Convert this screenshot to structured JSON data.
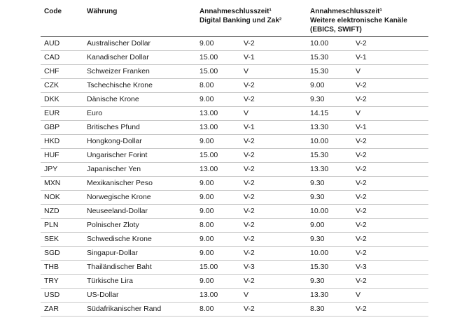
{
  "table": {
    "header": [
      [
        "Code"
      ],
      [
        "Währung"
      ],
      [
        "Annahmeschlusszeit¹",
        "Digital Banking und Zak²"
      ],
      [
        "Annahmeschlusszeit¹",
        "Weitere elektronische Kanäle",
        "(EBICS, SWIFT)"
      ]
    ],
    "rows": [
      [
        "AUD",
        "Australischer Dollar",
        "9.00",
        "V-2",
        "10.00",
        "V-2"
      ],
      [
        "CAD",
        "Kanadischer Dollar",
        "15.00",
        "V-1",
        "15.30",
        "V-1"
      ],
      [
        "CHF",
        "Schweizer Franken",
        "15.00",
        "V",
        "15.30",
        "V"
      ],
      [
        "CZK",
        "Tschechische Krone",
        "8.00",
        "V-2",
        "9.00",
        "V-2"
      ],
      [
        "DKK",
        "Dänische Krone",
        "9.00",
        "V-2",
        "9.30",
        "V-2"
      ],
      [
        "EUR",
        "Euro",
        "13.00",
        "V",
        "14.15",
        "V"
      ],
      [
        "GBP",
        "Britisches Pfund",
        "13.00",
        "V-1",
        "13.30",
        "V-1"
      ],
      [
        "HKD",
        "Hongkong-Dollar",
        "9.00",
        "V-2",
        "10.00",
        "V-2"
      ],
      [
        "HUF",
        "Ungarischer Forint",
        "15.00",
        "V-2",
        "15.30",
        "V-2"
      ],
      [
        "JPY",
        "Japanischer Yen",
        "13.00",
        "V-2",
        "13.30",
        "V-2"
      ],
      [
        "MXN",
        "Mexikanischer Peso",
        "9.00",
        "V-2",
        "9.30",
        "V-2"
      ],
      [
        "NOK",
        "Norwegische Krone",
        "9.00",
        "V-2",
        "9.30",
        "V-2"
      ],
      [
        "NZD",
        "Neuseeland-Dollar",
        "9.00",
        "V-2",
        "10.00",
        "V-2"
      ],
      [
        "PLN",
        "Polnischer Zloty",
        "8.00",
        "V-2",
        "9.00",
        "V-2"
      ],
      [
        "SEK",
        "Schwedische Krone",
        "9.00",
        "V-2",
        "9.30",
        "V-2"
      ],
      [
        "SGD",
        "Singapur-Dollar",
        "9.00",
        "V-2",
        "10.00",
        "V-2"
      ],
      [
        "THB",
        "Thailändischer Baht",
        "15.00",
        "V-3",
        "15.30",
        "V-3"
      ],
      [
        "TRY",
        "Türkische Lira",
        "9.00",
        "V-2",
        "9.30",
        "V-2"
      ],
      [
        "USD",
        "US-Dollar",
        "13.00",
        "V",
        "13.30",
        "V"
      ],
      [
        "ZAR",
        "Südafrikanischer Rand",
        "8.00",
        "V-2",
        "8.30",
        "V-2"
      ]
    ]
  }
}
